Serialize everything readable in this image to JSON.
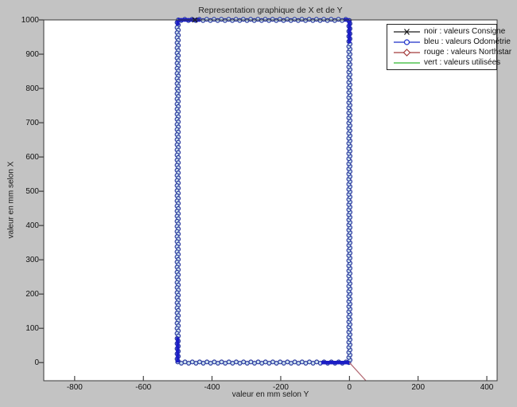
{
  "figure": {
    "bg_color": "#c3c3c3",
    "plot_bg": "#ffffff",
    "axis_color": "#3a3a3a"
  },
  "chart_data": {
    "type": "line",
    "title": "Representation graphique de X et de Y",
    "xlabel": "valeur en mm selon Y",
    "ylabel": "valeur en mm selon X",
    "xlim": [
      -890,
      430
    ],
    "ylim": [
      -53,
      1000
    ],
    "xticks": [
      -800,
      -600,
      -400,
      -200,
      0,
      200,
      400
    ],
    "yticks": [
      0,
      100,
      200,
      300,
      400,
      500,
      600,
      700,
      800,
      900,
      1000
    ],
    "grid": false,
    "legend": {
      "position": "top-right",
      "items": [
        {
          "label": "noir : valeurs Consigne",
          "color": "#1a1a1a",
          "marker": "x"
        },
        {
          "label": "bleu : valeurs Odométrie",
          "color": "#1c2ec8",
          "marker": "o"
        },
        {
          "label": "rouge : valeurs Northstar",
          "color": "#a43c3c",
          "marker": "diamond"
        },
        {
          "label": "vert : valeurs utilisées",
          "color": "#2eb82e",
          "marker": "none"
        }
      ]
    },
    "series": [
      {
        "name": "odometrie",
        "type": "marker_chain",
        "marker": "o",
        "marker_fill": "#cde2ef",
        "marker_stroke": "#2b3a9e",
        "path": [
          [
            0,
            0
          ],
          [
            0,
            1000
          ],
          [
            -500,
            1000
          ],
          [
            -500,
            0
          ],
          [
            0,
            0
          ]
        ]
      },
      {
        "name": "odometrie-bold",
        "type": "bold_segments",
        "color": "#1b1dc6",
        "segments": [
          [
            [
              -500,
              1000
            ],
            [
              -500,
              984
            ]
          ],
          [
            [
              -500,
              1000
            ],
            [
              -434,
              1000
            ]
          ],
          [
            [
              -16,
              1000
            ],
            [
              0,
              1000
            ]
          ],
          [
            [
              0,
              1000
            ],
            [
              0,
              932
            ]
          ],
          [
            [
              -500,
              74
            ],
            [
              -500,
              0
            ]
          ],
          [
            [
              -82,
              0
            ],
            [
              0,
              0
            ]
          ]
        ]
      },
      {
        "name": "consigne",
        "type": "points",
        "marker": "x",
        "color": "#111111",
        "points": [
          [
            -450,
            1000
          ]
        ]
      },
      {
        "name": "northstar",
        "type": "line",
        "color": "#b46a74",
        "points": [
          [
            0,
            0
          ],
          [
            48,
            -53
          ]
        ]
      }
    ]
  }
}
